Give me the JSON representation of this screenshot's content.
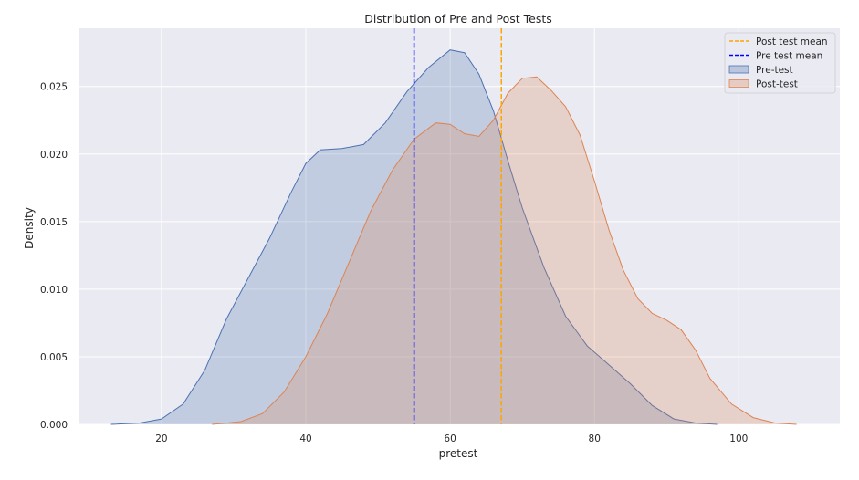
{
  "chart_data": {
    "type": "area",
    "title": "Distribution of Pre and Post Tests",
    "xlabel": "pretest",
    "ylabel": "Density",
    "xlim": [
      8.5,
      114
    ],
    "ylim": [
      0,
      0.0293
    ],
    "x_ticks": [
      20,
      40,
      60,
      80,
      100
    ],
    "y_ticks": [
      0.0,
      0.005,
      0.01,
      0.015,
      0.02,
      0.025
    ],
    "y_tick_labels": [
      "0.000",
      "0.005",
      "0.010",
      "0.015",
      "0.020",
      "0.025"
    ],
    "grid": true,
    "legend_position": "top-right",
    "series": [
      {
        "name": "Pre-test",
        "color": "#4c72b0",
        "fill": "#4c72b0",
        "points": [
          [
            13,
            0
          ],
          [
            17,
            0.0001
          ],
          [
            20,
            0.0004
          ],
          [
            23,
            0.0015
          ],
          [
            26,
            0.004
          ],
          [
            29,
            0.0078
          ],
          [
            32,
            0.0108
          ],
          [
            35,
            0.0138
          ],
          [
            38,
            0.0172
          ],
          [
            40,
            0.0193
          ],
          [
            42,
            0.0203
          ],
          [
            45,
            0.0204
          ],
          [
            48,
            0.0207
          ],
          [
            51,
            0.0223
          ],
          [
            54,
            0.0246
          ],
          [
            57,
            0.0264
          ],
          [
            60,
            0.0277
          ],
          [
            62,
            0.0275
          ],
          [
            64,
            0.0259
          ],
          [
            66,
            0.0232
          ],
          [
            68,
            0.0195
          ],
          [
            70,
            0.016
          ],
          [
            73,
            0.0116
          ],
          [
            76,
            0.008
          ],
          [
            79,
            0.0058
          ],
          [
            82,
            0.0044
          ],
          [
            85,
            0.003
          ],
          [
            88,
            0.0014
          ],
          [
            91,
            0.0004
          ],
          [
            94,
            0.0001
          ],
          [
            97,
            0
          ]
        ]
      },
      {
        "name": "Post-test",
        "color": "#dd8452",
        "fill": "#dd8452",
        "points": [
          [
            27,
            0
          ],
          [
            31,
            0.0002
          ],
          [
            34,
            0.0008
          ],
          [
            37,
            0.0024
          ],
          [
            40,
            0.005
          ],
          [
            43,
            0.0082
          ],
          [
            46,
            0.012
          ],
          [
            49,
            0.0158
          ],
          [
            52,
            0.0188
          ],
          [
            55,
            0.0211
          ],
          [
            58,
            0.0223
          ],
          [
            60,
            0.0222
          ],
          [
            62,
            0.0215
          ],
          [
            64,
            0.0213
          ],
          [
            66,
            0.0225
          ],
          [
            68,
            0.0245
          ],
          [
            70,
            0.0256
          ],
          [
            72,
            0.0257
          ],
          [
            74,
            0.0247
          ],
          [
            76,
            0.0235
          ],
          [
            78,
            0.0214
          ],
          [
            80,
            0.018
          ],
          [
            82,
            0.0144
          ],
          [
            84,
            0.0114
          ],
          [
            86,
            0.0093
          ],
          [
            88,
            0.0082
          ],
          [
            90,
            0.0077
          ],
          [
            92,
            0.007
          ],
          [
            94,
            0.0055
          ],
          [
            96,
            0.0034
          ],
          [
            99,
            0.0015
          ],
          [
            102,
            0.0005
          ],
          [
            105,
            0.0001
          ],
          [
            108,
            0
          ]
        ]
      },
      {
        "name": "Pre test mean",
        "type": "vline",
        "x": 55.0,
        "color": "#0000ff",
        "style": "dashed"
      },
      {
        "name": "Post test mean",
        "type": "vline",
        "x": 67.1,
        "color": "#ffa500",
        "style": "dashed"
      }
    ],
    "legend": [
      {
        "label": "Post test mean",
        "kind": "line",
        "color": "#ffa500"
      },
      {
        "label": "Pre test mean",
        "kind": "line",
        "color": "#0000ff"
      },
      {
        "label": "Pre-test",
        "kind": "patch",
        "color": "#4c72b0"
      },
      {
        "label": "Post-test",
        "kind": "patch",
        "color": "#dd8452"
      }
    ]
  }
}
